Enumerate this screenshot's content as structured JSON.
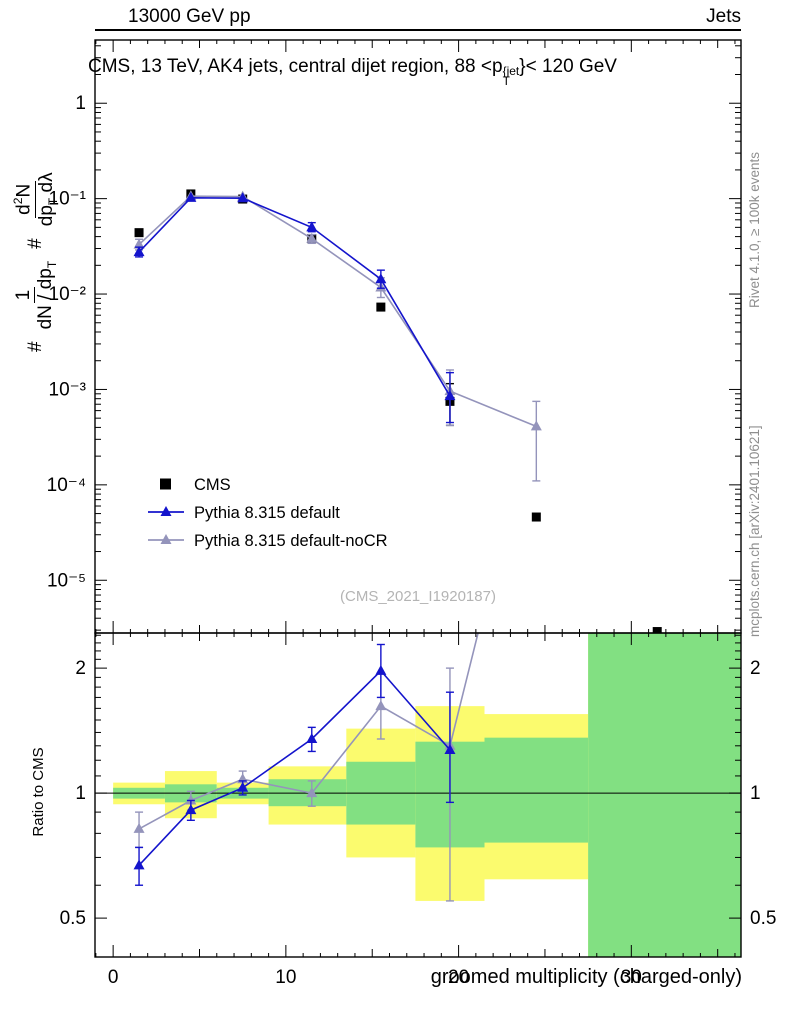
{
  "header": {
    "left": "13000 GeV pp",
    "right": "Jets"
  },
  "side_notes": {
    "top_right": "Rivet 4.1.0, ≥ 100k events",
    "bottom_right": "mcplots.cern.ch [arXiv:2401.10621]"
  },
  "title": {
    "pre": "CMS, 13 TeV, AK4 jets, central dijet region, 88 <p",
    "sup": "{jet",
    "sub": "T",
    "post": "}< 120 GeV"
  },
  "watermark": "(CMS_2021_I1920187)",
  "ylabel_main": {
    "hash1": "#",
    "f1num": "1",
    "f1den": "dN / dp",
    "f1den_sub": "T",
    "hash2": "#",
    "f2num_d": "d",
    "f2num_sup": "2",
    "f2num_N": "N",
    "f2den": "dp",
    "f2den_sub": "T",
    "f2den_tail": " dλ"
  },
  "axes": {
    "x": {
      "label": "groomed multiplicity (charged-only)",
      "ticks": [
        {
          "v": 0,
          "l": "0"
        },
        {
          "v": 10,
          "l": "10"
        },
        {
          "v": 20,
          "l": "20"
        },
        {
          "v": 30,
          "l": "30"
        }
      ]
    },
    "y_main": {
      "ticks": [
        {
          "v": 1,
          "l": "1"
        },
        {
          "v": 0.1,
          "l": "10⁻¹"
        },
        {
          "v": 0.01,
          "l": "10⁻²"
        },
        {
          "v": 0.001,
          "l": "10⁻³"
        },
        {
          "v": 0.0001,
          "l": "10⁻⁴"
        },
        {
          "v": 1e-05,
          "l": "10⁻⁵"
        }
      ]
    },
    "y_ratio": {
      "label": "Ratio to CMS",
      "ticks": [
        {
          "v": 0.5,
          "l": "0.5"
        },
        {
          "v": 1,
          "l": "1"
        },
        {
          "v": 2,
          "l": "2"
        }
      ]
    }
  },
  "legend": {
    "items": [
      {
        "label": "CMS",
        "marker": "square",
        "color_key": "cms"
      },
      {
        "label": "Pythia 8.315 default",
        "marker": "triangle-line",
        "color_key": "default"
      },
      {
        "label": "Pythia 8.315 default-noCR",
        "marker": "triangle-line",
        "color_key": "nocr"
      }
    ]
  },
  "chart_data": {
    "type": "line",
    "title": "CMS, 13 TeV, AK4 jets, central dijet region, 88 < pT(jet) < 120 GeV",
    "x_label": "groomed multiplicity (charged-only)",
    "x_range": [
      -1.05,
      36.35
    ],
    "colors": {
      "cms": "#000000",
      "default": "#1414cc",
      "nocr": "#9494bb",
      "band_yellow": "#fbfb6e",
      "band_green": "#82e082"
    },
    "main_panel": {
      "y_scale": "log",
      "y_range": [
        2.8e-06,
        4.6
      ],
      "series": [
        {
          "id": "cms",
          "name": "CMS",
          "marker": "square",
          "color_key": "cms",
          "line": false,
          "points": [
            {
              "x": 1.5,
              "y": 0.044
            },
            {
              "x": 4.5,
              "y": 0.112
            },
            {
              "x": 7.5,
              "y": 0.099
            },
            {
              "x": 11.5,
              "y": 0.038
            },
            {
              "x": 15.5,
              "y": 0.0073
            },
            {
              "x": 19.5,
              "y": 0.00075,
              "lo": 0.00042,
              "hi": 0.00115
            },
            {
              "x": 24.5,
              "y": 4.6e-05
            },
            {
              "x": 31.5,
              "y": 2.9e-06
            }
          ]
        },
        {
          "id": "nocr",
          "name": "Pythia 8.315 default-noCR",
          "marker": "triangle",
          "color_key": "nocr",
          "line": true,
          "points": [
            {
              "x": 1.5,
              "y": 0.033,
              "lo": 0.029,
              "hi": 0.0375
            },
            {
              "x": 4.5,
              "y": 0.106
            },
            {
              "x": 7.5,
              "y": 0.105
            },
            {
              "x": 11.5,
              "y": 0.038,
              "lo": 0.034,
              "hi": 0.042
            },
            {
              "x": 15.5,
              "y": 0.0117,
              "lo": 0.0092,
              "hi": 0.0148
            },
            {
              "x": 19.5,
              "y": 0.00096,
              "lo": 0.00042,
              "hi": 0.0016
            },
            {
              "x": 24.5,
              "y": 0.00041,
              "lo": 0.00011,
              "hi": 0.00075
            }
          ]
        },
        {
          "id": "default",
          "name": "Pythia 8.315 default",
          "marker": "triangle",
          "color_key": "default",
          "line": true,
          "points": [
            {
              "x": 1.5,
              "y": 0.0275,
              "lo": 0.0245,
              "hi": 0.031
            },
            {
              "x": 4.5,
              "y": 0.102
            },
            {
              "x": 7.5,
              "y": 0.101
            },
            {
              "x": 11.5,
              "y": 0.05,
              "lo": 0.045,
              "hi": 0.056
            },
            {
              "x": 15.5,
              "y": 0.0143,
              "lo": 0.0115,
              "hi": 0.0178
            },
            {
              "x": 19.5,
              "y": 0.00085,
              "lo": 0.00045,
              "hi": 0.0015
            }
          ]
        }
      ]
    },
    "ratio_panel": {
      "y_scale": "log",
      "y_range": [
        0.403,
        2.43
      ],
      "y_label": "Ratio to CMS",
      "bands": {
        "edges": [
          0,
          3,
          6,
          9,
          13.5,
          17.5,
          21.5,
          27.5,
          36.35
        ],
        "yellow": [
          [
            0.94,
            1.06
          ],
          [
            0.87,
            1.13
          ],
          [
            0.94,
            1.06
          ],
          [
            0.84,
            1.16
          ],
          [
            0.7,
            1.43
          ],
          [
            0.55,
            1.62
          ],
          [
            0.62,
            1.55
          ],
          [
            0.403,
            2.43
          ]
        ],
        "green": [
          [
            0.97,
            1.03
          ],
          [
            0.95,
            1.05
          ],
          [
            0.97,
            1.03
          ],
          [
            0.93,
            1.08
          ],
          [
            0.84,
            1.19
          ],
          [
            0.74,
            1.33
          ],
          [
            0.76,
            1.36
          ],
          [
            0.403,
            2.43
          ]
        ]
      },
      "series": [
        {
          "id": "nocr-ratio",
          "name": "Pythia 8.315 default-noCR",
          "marker": "triangle",
          "color_key": "nocr",
          "line": true,
          "points": [
            {
              "x": 1.5,
              "y": 0.82,
              "lo": 0.74,
              "hi": 0.9
            },
            {
              "x": 4.5,
              "y": 0.96,
              "lo": 0.91,
              "hi": 1.01
            },
            {
              "x": 7.5,
              "y": 1.08,
              "lo": 1.03,
              "hi": 1.13
            },
            {
              "x": 11.5,
              "y": 1.0,
              "lo": 0.93,
              "hi": 1.07
            },
            {
              "x": 15.5,
              "y": 1.62,
              "lo": 1.35,
              "hi": 1.95
            },
            {
              "x": 19.5,
              "y": 1.3,
              "lo": 0.55,
              "hi": 2.0
            },
            {
              "x": 24.5,
              "y": 8.9
            }
          ]
        },
        {
          "id": "default-ratio",
          "name": "Pythia 8.315 default",
          "marker": "triangle",
          "color_key": "default",
          "line": true,
          "points": [
            {
              "x": 1.5,
              "y": 0.67,
              "lo": 0.6,
              "hi": 0.74
            },
            {
              "x": 4.5,
              "y": 0.91,
              "lo": 0.86,
              "hi": 0.96
            },
            {
              "x": 7.5,
              "y": 1.03,
              "lo": 0.99,
              "hi": 1.07
            },
            {
              "x": 11.5,
              "y": 1.35,
              "lo": 1.26,
              "hi": 1.44
            },
            {
              "x": 15.5,
              "y": 1.97,
              "lo": 1.7,
              "hi": 2.28
            },
            {
              "x": 19.5,
              "y": 1.27,
              "lo": 0.95,
              "hi": 1.75
            }
          ]
        }
      ]
    }
  }
}
